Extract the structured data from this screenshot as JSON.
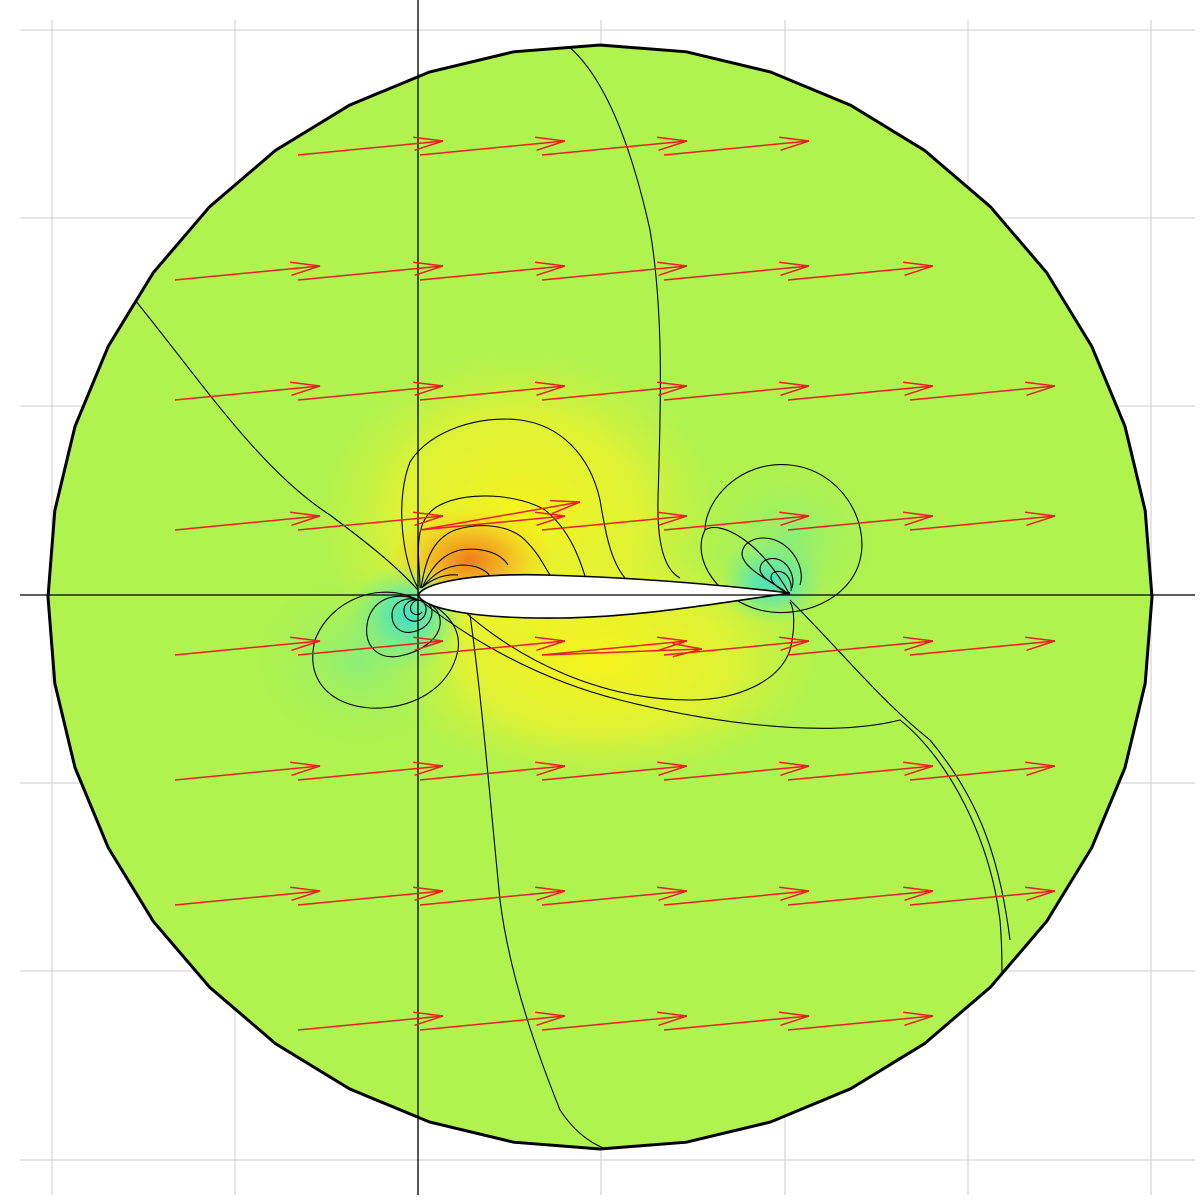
{
  "figure": {
    "kind": "airfoil potential-flow field",
    "colors": {
      "background": "#ffffff",
      "grid": "#d6d6d6",
      "axes": "#000000",
      "domain_outline": "#000000",
      "field_base": "#b0f24e",
      "high_region": "#f2f21a",
      "peak_region": "#ef8c1c",
      "low_region": "#3fe0d8",
      "contour": "#000000",
      "vectors": "#e82020",
      "airfoil_fill": "#ffffff"
    },
    "grid_lines": true,
    "axes_cross_at_origin": true,
    "arrow_rows": 8
  }
}
